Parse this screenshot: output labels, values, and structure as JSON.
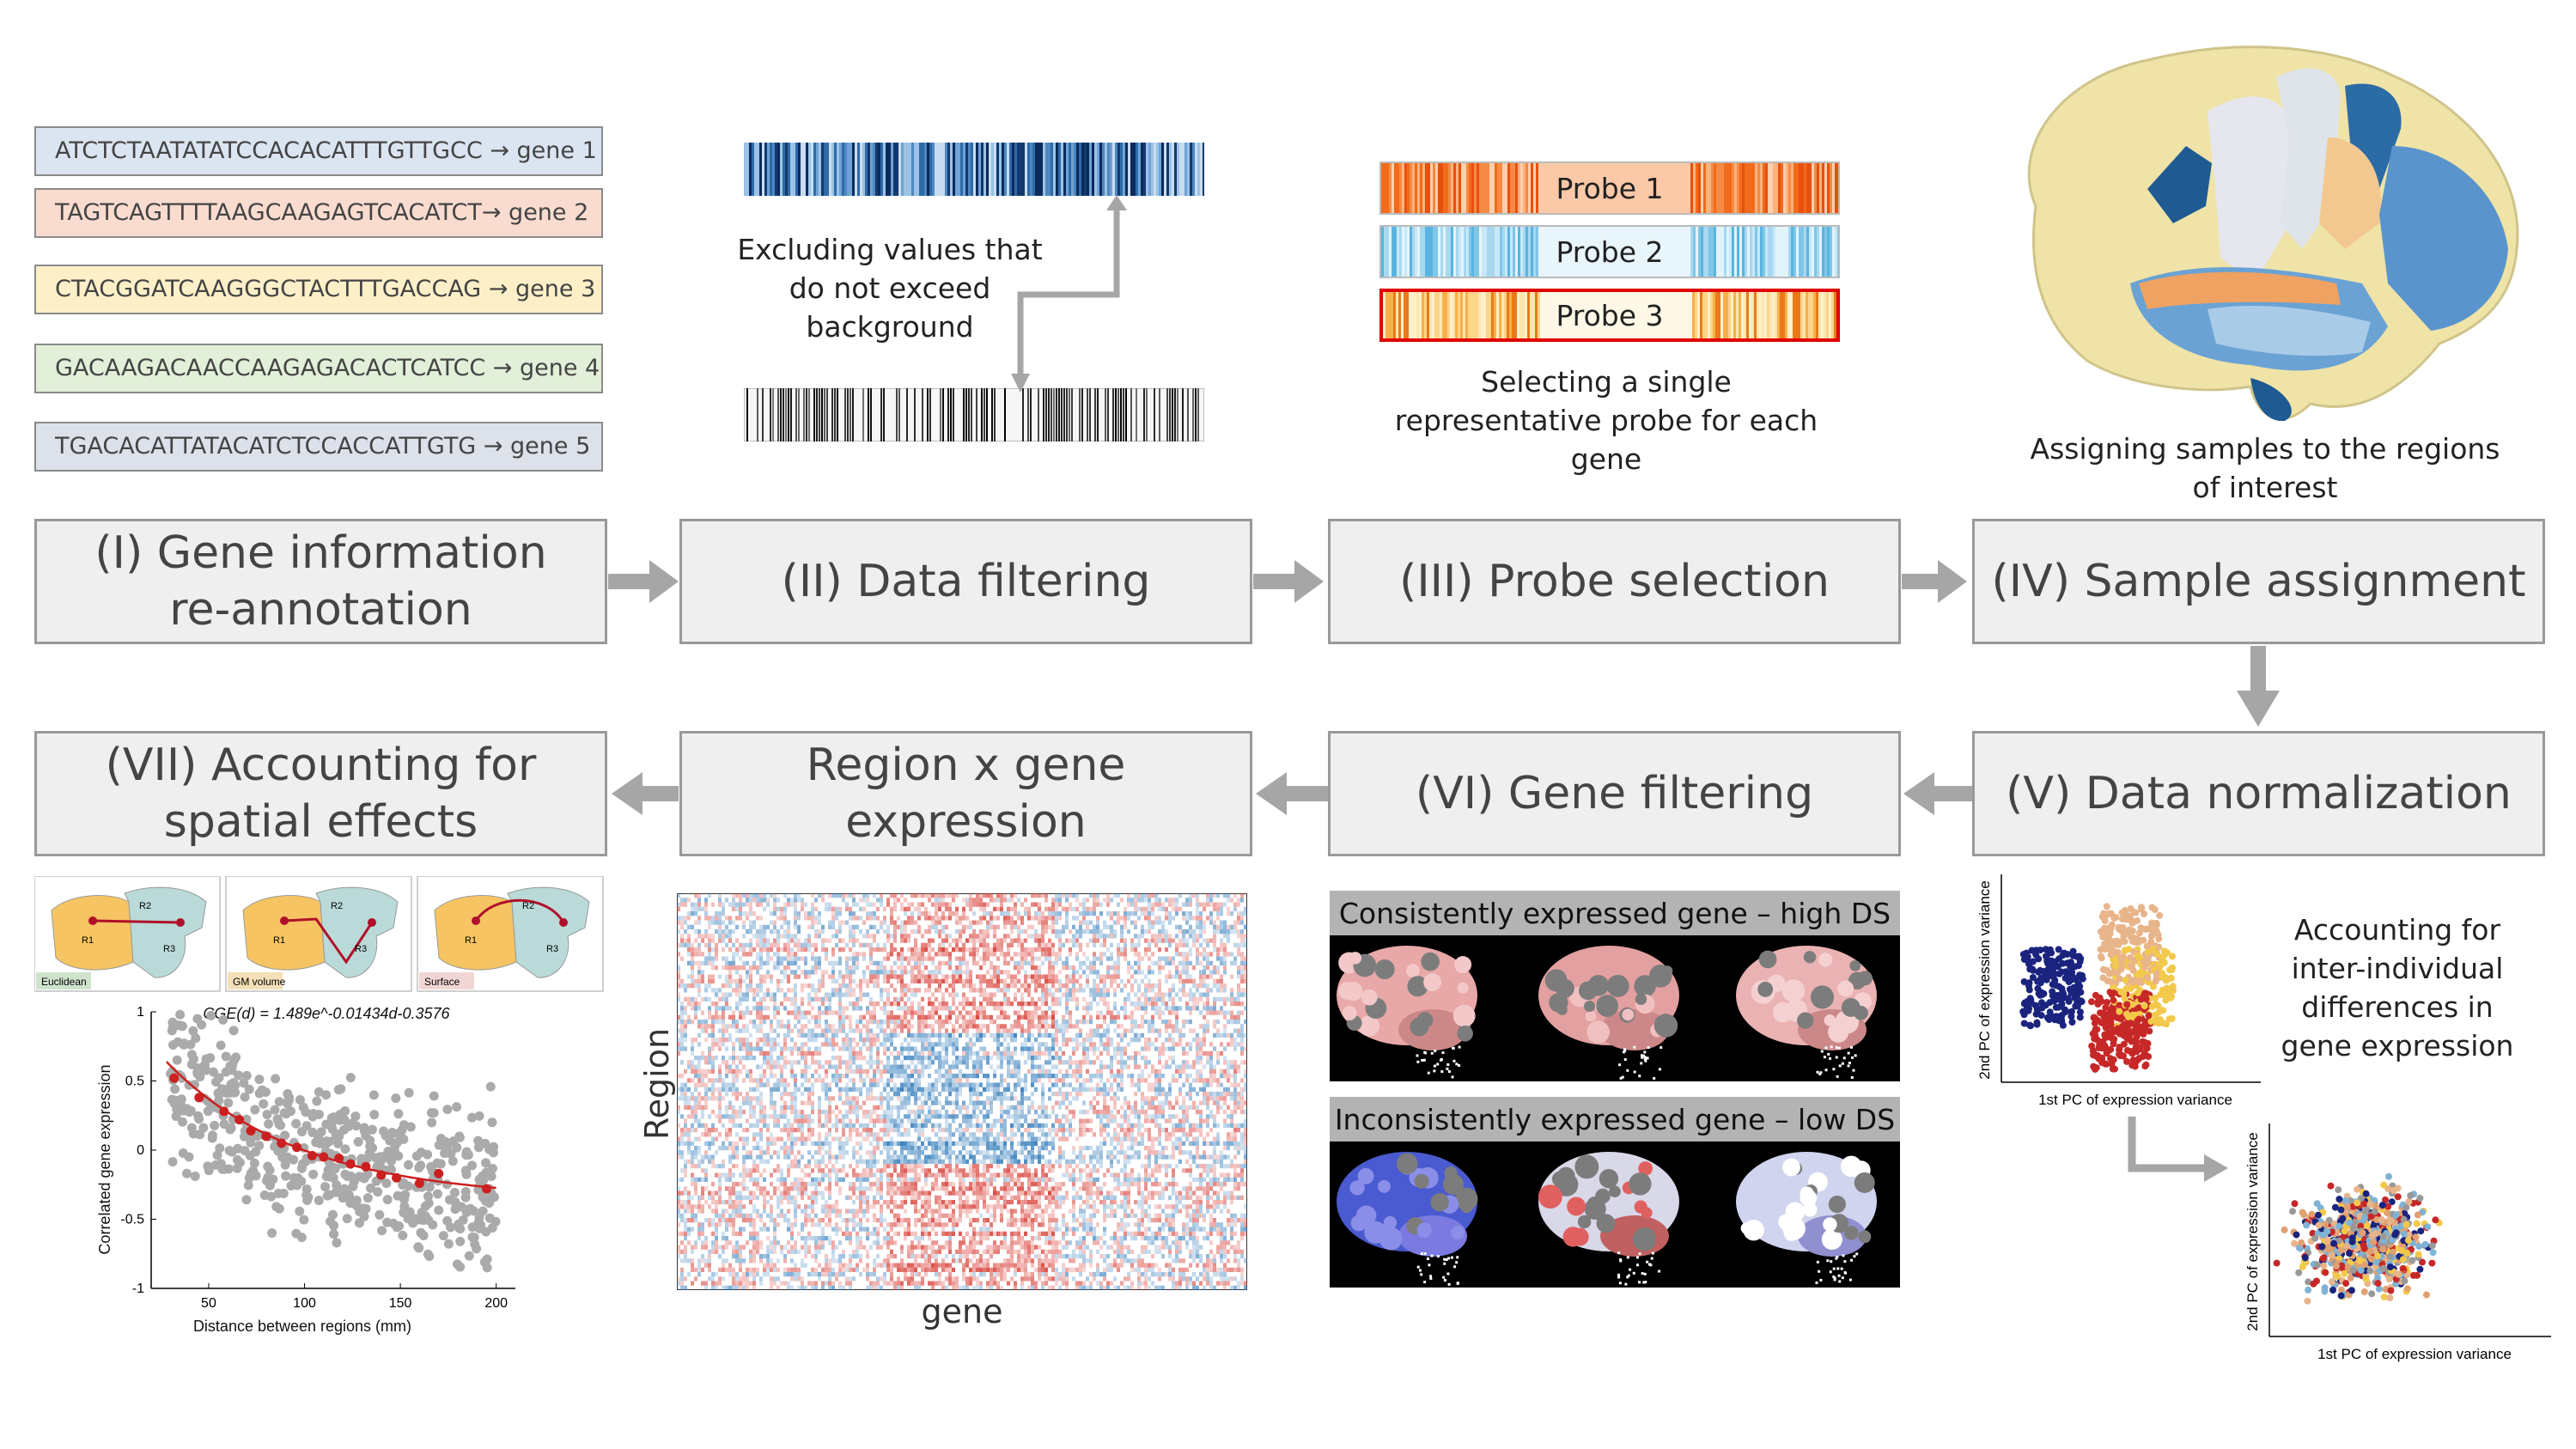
{
  "sequences": [
    {
      "text": "ATCTCTAATATATCCACACATTTGTTGCC → gene 1",
      "color": "#dbe5f1"
    },
    {
      "text": "TAGTCAGTTTTAAGCAAGAGTCACATCT→ gene 2",
      "color": "#f9dccf"
    },
    {
      "text": "CTACGGATCAAGGGCTACTTTGACCAG → gene 3",
      "color": "#fdf0c8"
    },
    {
      "text": "GACAAGACAACCAAGAGACACTCATCC → gene 4",
      "color": "#e2efd9"
    },
    {
      "text": "TGACACATTATACATCTCCACCATTGTG → gene 5",
      "color": "#dce1ea"
    }
  ],
  "stages": {
    "s1": "(I) Gene information re-annotation",
    "s2": "(II) Data filtering",
    "s3": "(III) Probe selection",
    "s4": "(IV) Sample assignment",
    "s5": "(V) Data normalization",
    "s6": "(VI) Gene filtering",
    "s_rg": "Region x gene expression",
    "s7": "(VII) Accounting for spatial effects"
  },
  "captions": {
    "filtering": "Excluding values that do not exceed background",
    "probe": "Selecting a single representative probe for each gene",
    "assign": "Assigning samples to the regions of interest",
    "normalization": "Accounting for inter-individual differences in gene expression"
  },
  "probes": [
    "Probe 1",
    "Probe 2",
    "Probe 3"
  ],
  "gene_filter": {
    "high": "Consistently expressed gene – high DS",
    "low": "Inconsistently expressed gene – low DS"
  },
  "heatmap": {
    "xlabel": "gene",
    "ylabel": "Region"
  },
  "pca": {
    "xlabel": "1st PC of expression variance",
    "ylabel": "2nd PC of expression variance"
  },
  "distance_panels": [
    "Euclidean",
    "GM volume",
    "Surface"
  ],
  "region_labels": [
    "R1",
    "R2",
    "R3"
  ],
  "chart_data": {
    "type": "scatter",
    "title": "CGE(d) = 1.489e^-0.01434d-0.3576",
    "xlabel": "Distance between regions (mm)",
    "ylabel": "Correlated gene expression",
    "xlim": [
      20,
      210
    ],
    "ylim": [
      -1,
      1
    ],
    "xticks": [
      50,
      100,
      150,
      200
    ],
    "yticks": [
      -1,
      -0.5,
      0,
      0.5,
      1
    ],
    "series": [
      {
        "values": [],
        "color": "#aaaaaa"
      },
      {
        "values": [
          [
            32,
            0.52
          ],
          [
            45,
            0.38
          ],
          [
            58,
            0.28
          ],
          [
            66,
            0.22
          ],
          [
            72,
            0.14
          ],
          [
            80,
            0.1
          ],
          [
            88,
            0.05
          ],
          [
            96,
            0.02
          ],
          [
            104,
            -0.04
          ],
          [
            110,
            -0.05
          ],
          [
            118,
            -0.06
          ],
          [
            124,
            -0.1
          ],
          [
            132,
            -0.12
          ],
          [
            140,
            -0.18
          ],
          [
            148,
            -0.2
          ],
          [
            160,
            -0.24
          ],
          [
            170,
            -0.17
          ],
          [
            195,
            -0.28
          ]
        ],
        "color": "#cc1f1f"
      }
    ],
    "fit": {
      "a": 1.489,
      "b": -0.01434,
      "c": -0.3576,
      "color": "#cc1f1f"
    }
  },
  "colors": {
    "stage_bg": "#efefef",
    "arrow": "#a6a6a6",
    "red": "#e00000"
  }
}
